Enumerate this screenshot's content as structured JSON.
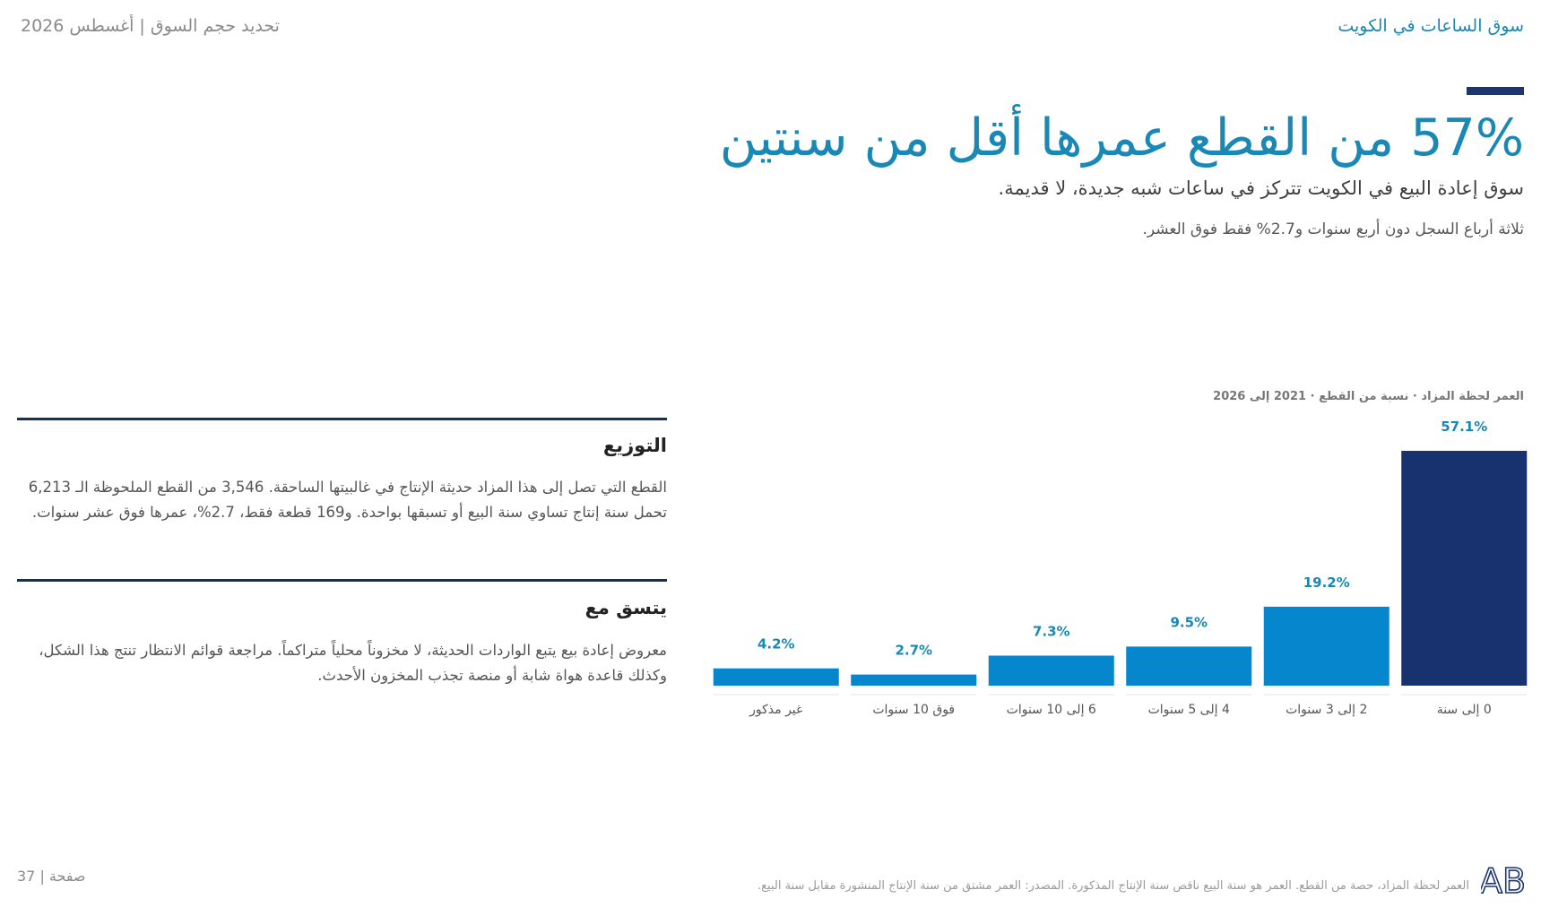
{
  "header": {
    "section_title": "سوق الساعات في الكويت",
    "report_info": "تحديد حجم السوق | أغسطس 2026"
  },
  "headline": {
    "title": "57% من القطع عمرها أقل من سنتين",
    "subtitle": "سوق إعادة البيع في الكويت تتركز في ساعات شبه جديدة، لا قديمة.",
    "note": "ثلاثة أرباع السجل دون أربع سنوات و2.7% فقط فوق العشر."
  },
  "sections": [
    {
      "title": "التوزيع",
      "body": "القطع التي تصل إلى هذا المزاد حديثة الإنتاج في غالبيتها الساحقة. 3,546 من القطع الملحوظة الـ 6,213 تحمل سنة إنتاج تساوي سنة البيع أو تسبقها بواحدة. و169 قطعة فقط، 2.7%، عمرها فوق عشر سنوات."
    },
    {
      "title": "يتسق مع",
      "body": "معروض إعادة بيع يتبع الواردات الحديثة، لا مخزوناً محلياً متراكماً. مراجعة قوائم الانتظار تنتج هذا الشكل، وكذلك قاعدة هواة شابة أو منصة تجذب المخزون الأحدث."
    }
  ],
  "chart_data": {
    "type": "bar",
    "title": "العمر لحظة المزاد · نسبة من القطع · 2021 إلى 2026",
    "categories": [
      "0 إلى سنة",
      "2 إلى 3 سنوات",
      "4 إلى 5 سنوات",
      "6 إلى 10 سنوات",
      "فوق 10 سنوات",
      "غير مذكور"
    ],
    "values": [
      57.1,
      19.2,
      9.5,
      7.3,
      2.7,
      4.2
    ],
    "value_labels": [
      "57.1%",
      "19.2%",
      "9.5%",
      "7.3%",
      "2.7%",
      "4.2%"
    ],
    "colors": [
      "#17326f",
      "#0686cc",
      "#0686cc",
      "#0686cc",
      "#0686cc",
      "#0686cc"
    ],
    "label_color": "#1a88b4",
    "ylim": [
      0,
      57.1
    ],
    "grid": false,
    "legend": "none"
  },
  "footer": {
    "page_label": "صفحة | 37",
    "note": "العمر لحظة المزاد، حصة من القطع. العمر هو سنة البيع ناقص سنة الإنتاج المذكورة. المصدر: العمر مشتق من سنة الإنتاج المنشورة مقابل سنة البيع.",
    "logo_text": "AB"
  }
}
